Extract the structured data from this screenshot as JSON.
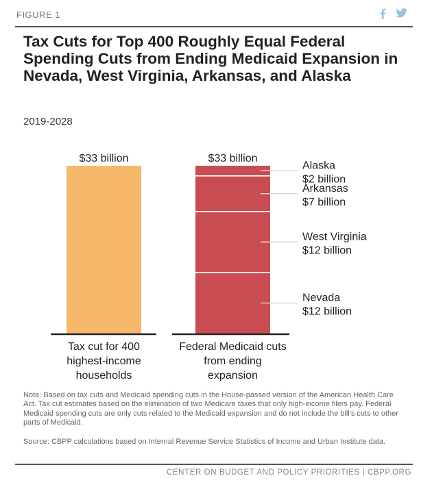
{
  "header": {
    "figure_label": "FIGURE 1",
    "title": "Tax Cuts for Top 400 Roughly Equal Federal Spending Cuts from Ending Medicaid Expansion in Nevada, West Virginia, Arkansas, and Alaska",
    "subtitle": "2019-2028",
    "social_icons": [
      "facebook-icon",
      "twitter-icon"
    ]
  },
  "chart_data": {
    "type": "bar",
    "unit": "billion",
    "title": "Tax Cuts for Top 400 Roughly Equal Federal Spending Cuts from Ending Medicaid Expansion in Nevada, West Virginia, Arkansas, and Alaska",
    "subtitle": "2019-2028",
    "categories": [
      "Tax cut for 400 highest-income households",
      "Federal Medicaid cuts from ending expansion"
    ],
    "category_lines": [
      [
        "Tax cut for 400",
        "highest-income",
        "households"
      ],
      [
        "Federal Medicaid cuts",
        "from ending",
        "expansion"
      ]
    ],
    "bars": [
      {
        "total": 33,
        "total_label": "$33 billion",
        "color": "#f6b86a",
        "segments": [
          {
            "name": "",
            "value": 33
          }
        ]
      },
      {
        "total": 33,
        "total_label": "$33 billion",
        "color": "#c84c51",
        "stack_order_bottom_to_top": true,
        "segments": [
          {
            "name": "Nevada",
            "value": 12,
            "label": "$12 billion"
          },
          {
            "name": "West Virginia",
            "value": 12,
            "label": "$12 billion"
          },
          {
            "name": "Arkansas",
            "value": 7,
            "label": "$7 billion"
          },
          {
            "name": "Alaska",
            "value": 2,
            "label": "$2 billion"
          }
        ]
      }
    ],
    "ylim": [
      0,
      33
    ],
    "grid": false,
    "legend": "none"
  },
  "notes": {
    "note": "Note: Based on tax cuts and Medicaid spending cuts in the House-passed version of the American Health Care Act.  Tax cut estimates based on the elimination of two Medicare taxes that only high-income filers pay.  Federal Medicaid spending cuts are only cuts related to the Medicaid expansion and do not include the bill's cuts to other parts of Medicaid.",
    "source": "Source: CBPP calculations based on Internal Revenue Service Statistics of Income and Urban Institute data."
  },
  "footer": {
    "organization": "CENTER ON BUDGET AND POLICY PRIORITIES | CBPP.ORG"
  },
  "colors": {
    "tax_bar": "#f6b86a",
    "medicaid_bar": "#c84c51",
    "text": "#222222",
    "muted": "#666666"
  }
}
